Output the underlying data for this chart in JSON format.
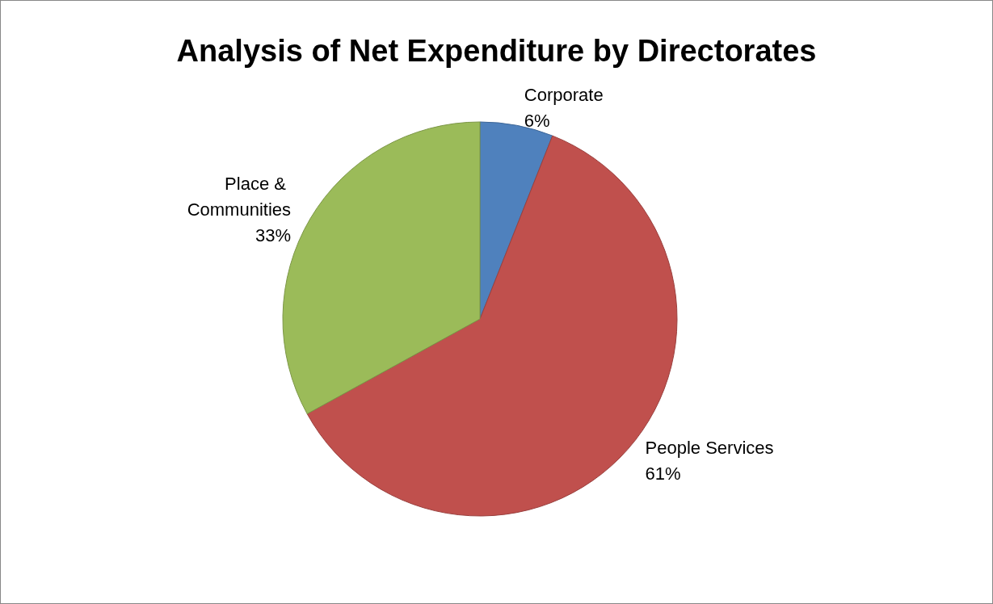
{
  "chart_data": {
    "type": "pie",
    "title": "Analysis of Net Expenditure by Directorates",
    "categories": [
      "Corporate",
      "People Services",
      "Place & Communities"
    ],
    "values": [
      6,
      61,
      33
    ],
    "value_labels": [
      "6%",
      "61%",
      "33%"
    ],
    "colors": [
      "#4f81bd",
      "#c0504d",
      "#9bbb59"
    ],
    "legend": false
  }
}
